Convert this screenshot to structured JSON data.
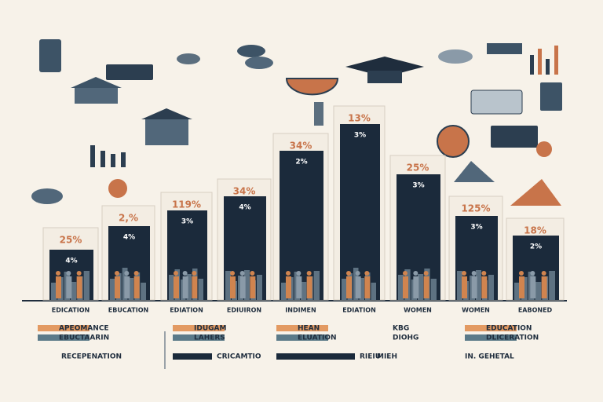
{
  "bars": [
    {
      "label": "25%",
      "inner_label": "4%",
      "category": "EDICATION"
    },
    {
      "label": "2,%",
      "inner_label": "4%",
      "category": "EBUCATION"
    },
    {
      "label": "119%",
      "inner_label": "3%",
      "category": "EDIATION"
    },
    {
      "label": "34%",
      "inner_label": "4%",
      "category": "EDIUIRON"
    },
    {
      "label": "34%",
      "inner_label": "2%",
      "category": "INDIMEN"
    },
    {
      "label": "13%",
      "inner_label": "3%",
      "category": "EDIATION"
    },
    {
      "label": "25%",
      "inner_label": "3%",
      "category": "WOMEN"
    },
    {
      "label": "125%",
      "inner_label": "3%",
      "category": "WOMEN"
    },
    {
      "label": "18%",
      "inner_label": "2%",
      "category": "EABONED"
    }
  ],
  "legend": [
    [
      "APEOMANCE",
      "EBUCTAARIN"
    ],
    [
      "IDUGAM",
      "LAHERS"
    ],
    [
      "HEAN",
      "ELUATION"
    ],
    [
      "KBG",
      "DIOHG"
    ],
    [
      "EDUCATION",
      "DLICERATION"
    ]
  ],
  "footer": [
    "RECEPENATION",
    "CRICAMTIO",
    "RIEIU",
    "MIEH",
    "IN. GEHETAL"
  ]
}
